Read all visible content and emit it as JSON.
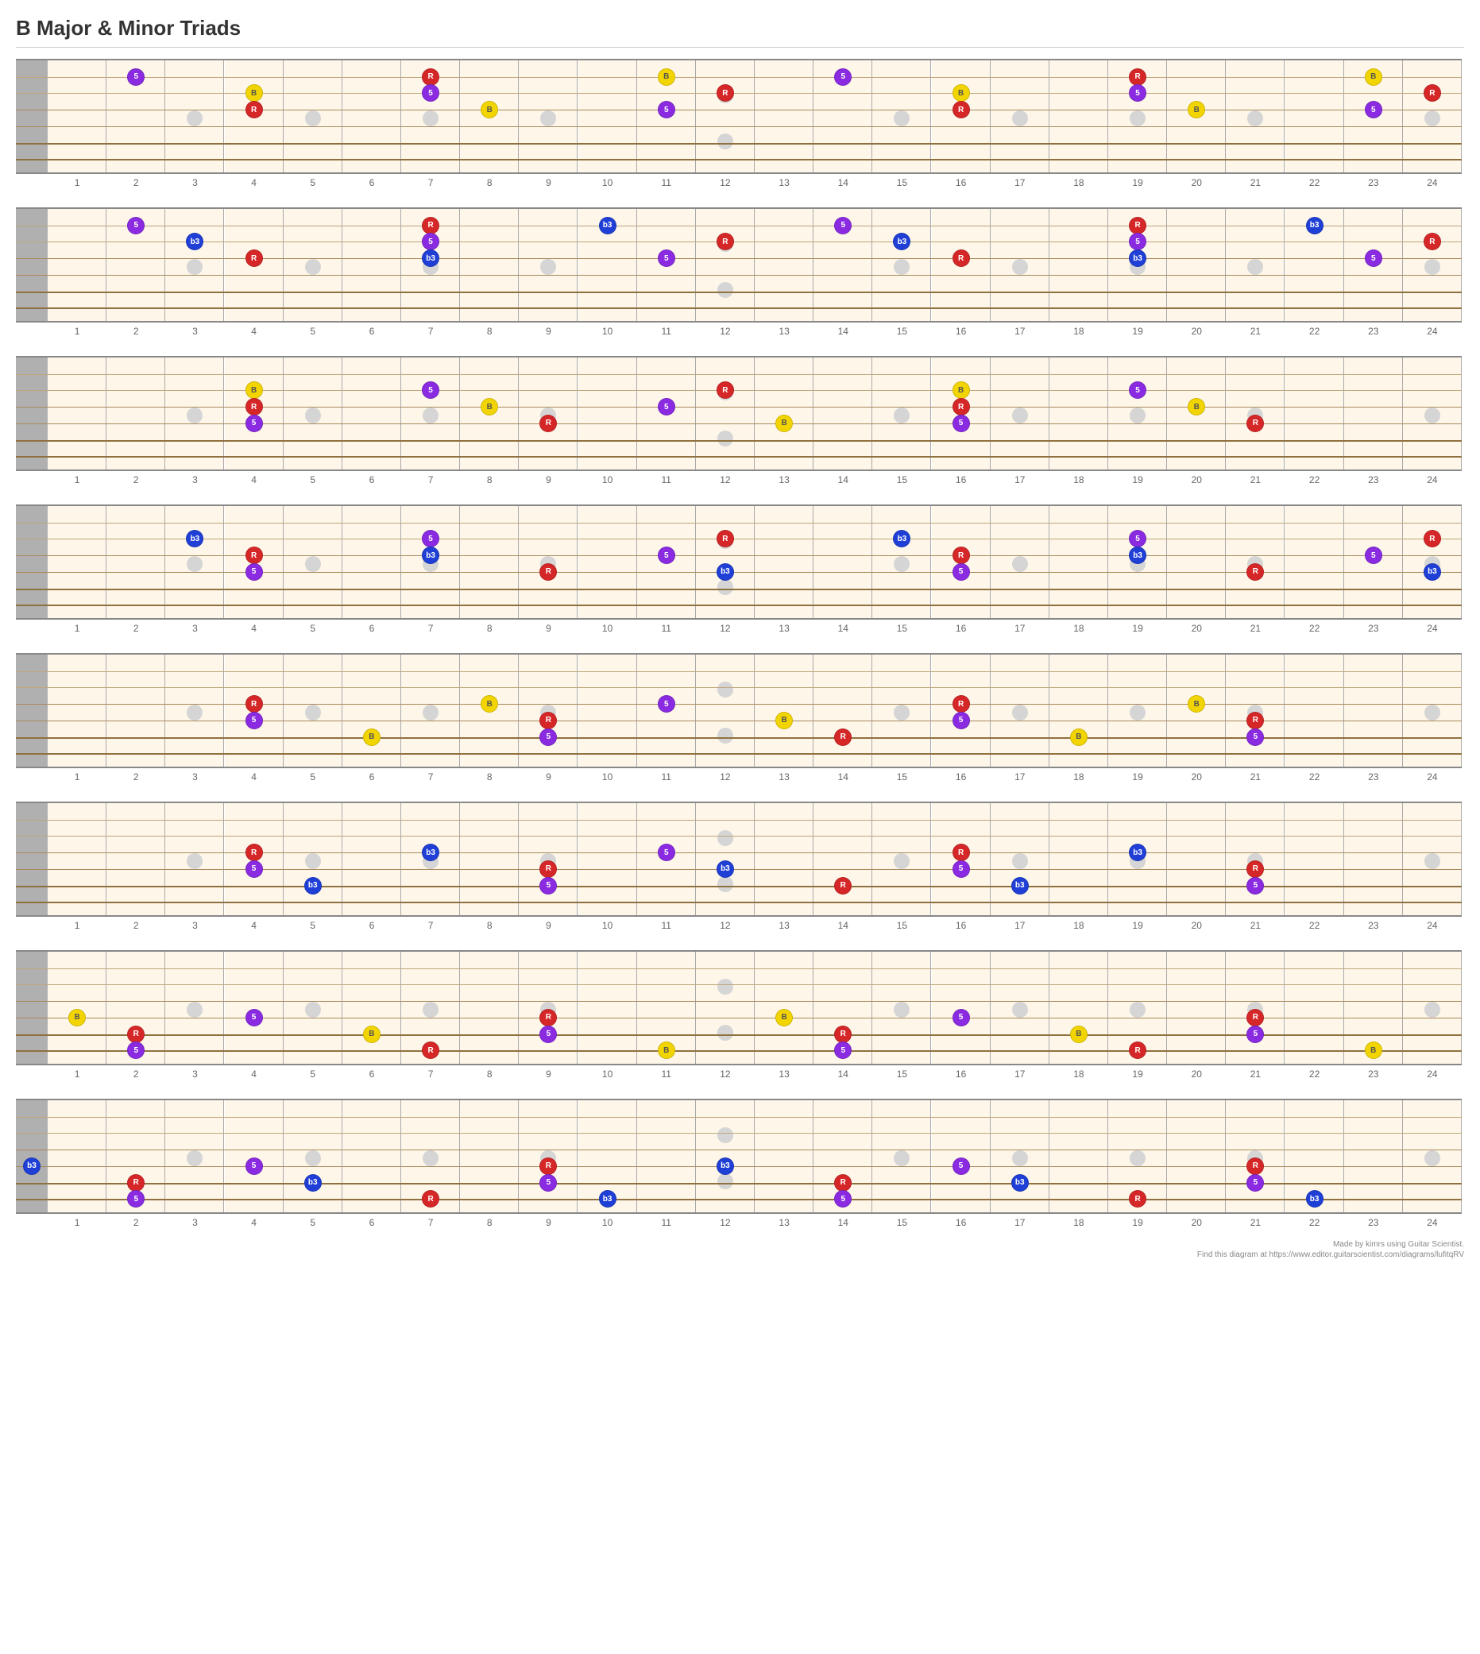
{
  "title": "B Major & Minor Triads",
  "footer_line1": "Made by kimrs using Guitar Scientist.",
  "footer_line2": "Find this diagram at https://www.editor.guitarscientist.com/diagrams/lufitqRV",
  "canvas": {
    "total_width": 1820,
    "nut_width": 40,
    "diagram_height": 145,
    "strings": 6,
    "frets": 24,
    "fretNumbers": [
      "1",
      "2",
      "3",
      "4",
      "5",
      "6",
      "7",
      "8",
      "9",
      "10",
      "11",
      "12",
      "13",
      "14",
      "15",
      "16",
      "17",
      "18",
      "19",
      "20",
      "21",
      "22",
      "23",
      "24"
    ],
    "inlayFrets_single": [
      3,
      5,
      7,
      9,
      15,
      17,
      19,
      21,
      24
    ],
    "inlayFrets_double": [
      12
    ],
    "background": "#fdf6e9",
    "fretLine": "#aaaaaa",
    "nutColor": "#b0b0b0",
    "markerColor": "#d5d5d5",
    "fretNumColor": "#666666",
    "stringColors": [
      "#bfa77c",
      "#bfa77c",
      "#a98a5c",
      "#a98a5c",
      "#8f713f",
      "#8f713f"
    ]
  },
  "noteStyles": {
    "R": {
      "bg": "#d62728",
      "fg": "#ffffff",
      "label": "R"
    },
    "B": {
      "bg": "#f2d500",
      "fg": "#555555",
      "label": "B"
    },
    "5": {
      "bg": "#8a2be2",
      "fg": "#ffffff",
      "label": "5"
    },
    "b3": {
      "bg": "#1f3fd6",
      "fg": "#ffffff",
      "label": "b3"
    }
  },
  "diagrams": [
    {
      "notes": [
        {
          "s": 1,
          "f": 2,
          "n": "5"
        },
        {
          "s": 1,
          "f": 7,
          "n": "R"
        },
        {
          "s": 1,
          "f": 11,
          "n": "B"
        },
        {
          "s": 1,
          "f": 14,
          "n": "5"
        },
        {
          "s": 1,
          "f": 19,
          "n": "R"
        },
        {
          "s": 1,
          "f": 23,
          "n": "B"
        },
        {
          "s": 2,
          "f": 4,
          "n": "B"
        },
        {
          "s": 2,
          "f": 7,
          "n": "5"
        },
        {
          "s": 2,
          "f": 12,
          "n": "R"
        },
        {
          "s": 2,
          "f": 16,
          "n": "B"
        },
        {
          "s": 2,
          "f": 19,
          "n": "5"
        },
        {
          "s": 2,
          "f": 24,
          "n": "R"
        },
        {
          "s": 3,
          "f": 4,
          "n": "R"
        },
        {
          "s": 3,
          "f": 8,
          "n": "B"
        },
        {
          "s": 3,
          "f": 11,
          "n": "5"
        },
        {
          "s": 3,
          "f": 16,
          "n": "R"
        },
        {
          "s": 3,
          "f": 20,
          "n": "B"
        },
        {
          "s": 3,
          "f": 23,
          "n": "5"
        }
      ]
    },
    {
      "notes": [
        {
          "s": 1,
          "f": 2,
          "n": "5"
        },
        {
          "s": 1,
          "f": 7,
          "n": "R"
        },
        {
          "s": 1,
          "f": 10,
          "n": "b3"
        },
        {
          "s": 1,
          "f": 14,
          "n": "5"
        },
        {
          "s": 1,
          "f": 19,
          "n": "R"
        },
        {
          "s": 1,
          "f": 22,
          "n": "b3"
        },
        {
          "s": 2,
          "f": 3,
          "n": "b3"
        },
        {
          "s": 2,
          "f": 7,
          "n": "5"
        },
        {
          "s": 2,
          "f": 12,
          "n": "R"
        },
        {
          "s": 2,
          "f": 15,
          "n": "b3"
        },
        {
          "s": 2,
          "f": 19,
          "n": "5"
        },
        {
          "s": 2,
          "f": 24,
          "n": "R"
        },
        {
          "s": 3,
          "f": 4,
          "n": "R"
        },
        {
          "s": 3,
          "f": 7,
          "n": "b3"
        },
        {
          "s": 3,
          "f": 11,
          "n": "5"
        },
        {
          "s": 3,
          "f": 16,
          "n": "R"
        },
        {
          "s": 3,
          "f": 19,
          "n": "b3"
        },
        {
          "s": 3,
          "f": 23,
          "n": "5"
        }
      ]
    },
    {
      "notes": [
        {
          "s": 2,
          "f": 4,
          "n": "B"
        },
        {
          "s": 2,
          "f": 7,
          "n": "5"
        },
        {
          "s": 2,
          "f": 12,
          "n": "R"
        },
        {
          "s": 2,
          "f": 16,
          "n": "B"
        },
        {
          "s": 2,
          "f": 19,
          "n": "5"
        },
        {
          "s": 3,
          "f": 4,
          "n": "R"
        },
        {
          "s": 3,
          "f": 8,
          "n": "B"
        },
        {
          "s": 3,
          "f": 11,
          "n": "5"
        },
        {
          "s": 3,
          "f": 16,
          "n": "R"
        },
        {
          "s": 3,
          "f": 20,
          "n": "B"
        },
        {
          "s": 4,
          "f": 4,
          "n": "5"
        },
        {
          "s": 4,
          "f": 9,
          "n": "R"
        },
        {
          "s": 4,
          "f": 13,
          "n": "B"
        },
        {
          "s": 4,
          "f": 16,
          "n": "5"
        },
        {
          "s": 4,
          "f": 21,
          "n": "R"
        }
      ]
    },
    {
      "notes": [
        {
          "s": 2,
          "f": 3,
          "n": "b3"
        },
        {
          "s": 2,
          "f": 7,
          "n": "5"
        },
        {
          "s": 2,
          "f": 12,
          "n": "R"
        },
        {
          "s": 2,
          "f": 15,
          "n": "b3"
        },
        {
          "s": 2,
          "f": 19,
          "n": "5"
        },
        {
          "s": 2,
          "f": 24,
          "n": "R"
        },
        {
          "s": 3,
          "f": 4,
          "n": "R"
        },
        {
          "s": 3,
          "f": 7,
          "n": "b3"
        },
        {
          "s": 3,
          "f": 11,
          "n": "5"
        },
        {
          "s": 3,
          "f": 16,
          "n": "R"
        },
        {
          "s": 3,
          "f": 19,
          "n": "b3"
        },
        {
          "s": 3,
          "f": 23,
          "n": "5"
        },
        {
          "s": 4,
          "f": 4,
          "n": "5"
        },
        {
          "s": 4,
          "f": 9,
          "n": "R"
        },
        {
          "s": 4,
          "f": 12,
          "n": "b3"
        },
        {
          "s": 4,
          "f": 16,
          "n": "5"
        },
        {
          "s": 4,
          "f": 21,
          "n": "R"
        },
        {
          "s": 4,
          "f": 24,
          "n": "b3"
        }
      ]
    },
    {
      "notes": [
        {
          "s": 3,
          "f": 4,
          "n": "R"
        },
        {
          "s": 3,
          "f": 8,
          "n": "B"
        },
        {
          "s": 3,
          "f": 11,
          "n": "5"
        },
        {
          "s": 3,
          "f": 16,
          "n": "R"
        },
        {
          "s": 3,
          "f": 20,
          "n": "B"
        },
        {
          "s": 4,
          "f": 4,
          "n": "5"
        },
        {
          "s": 4,
          "f": 9,
          "n": "R"
        },
        {
          "s": 4,
          "f": 13,
          "n": "B"
        },
        {
          "s": 4,
          "f": 16,
          "n": "5"
        },
        {
          "s": 4,
          "f": 21,
          "n": "R"
        },
        {
          "s": 5,
          "f": 6,
          "n": "B"
        },
        {
          "s": 5,
          "f": 9,
          "n": "5"
        },
        {
          "s": 5,
          "f": 14,
          "n": "R"
        },
        {
          "s": 5,
          "f": 18,
          "n": "B"
        },
        {
          "s": 5,
          "f": 21,
          "n": "5"
        }
      ]
    },
    {
      "notes": [
        {
          "s": 3,
          "f": 4,
          "n": "R"
        },
        {
          "s": 3,
          "f": 7,
          "n": "b3"
        },
        {
          "s": 3,
          "f": 11,
          "n": "5"
        },
        {
          "s": 3,
          "f": 16,
          "n": "R"
        },
        {
          "s": 3,
          "f": 19,
          "n": "b3"
        },
        {
          "s": 4,
          "f": 4,
          "n": "5"
        },
        {
          "s": 4,
          "f": 9,
          "n": "R"
        },
        {
          "s": 4,
          "f": 12,
          "n": "b3"
        },
        {
          "s": 4,
          "f": 16,
          "n": "5"
        },
        {
          "s": 4,
          "f": 21,
          "n": "R"
        },
        {
          "s": 5,
          "f": 5,
          "n": "b3"
        },
        {
          "s": 5,
          "f": 9,
          "n": "5"
        },
        {
          "s": 5,
          "f": 14,
          "n": "R"
        },
        {
          "s": 5,
          "f": 17,
          "n": "b3"
        },
        {
          "s": 5,
          "f": 21,
          "n": "5"
        }
      ]
    },
    {
      "notes": [
        {
          "s": 4,
          "f": 1,
          "n": "B"
        },
        {
          "s": 4,
          "f": 4,
          "n": "5"
        },
        {
          "s": 4,
          "f": 9,
          "n": "R"
        },
        {
          "s": 4,
          "f": 13,
          "n": "B"
        },
        {
          "s": 4,
          "f": 16,
          "n": "5"
        },
        {
          "s": 4,
          "f": 21,
          "n": "R"
        },
        {
          "s": 5,
          "f": 2,
          "n": "R"
        },
        {
          "s": 5,
          "f": 6,
          "n": "B"
        },
        {
          "s": 5,
          "f": 9,
          "n": "5"
        },
        {
          "s": 5,
          "f": 14,
          "n": "R"
        },
        {
          "s": 5,
          "f": 18,
          "n": "B"
        },
        {
          "s": 5,
          "f": 21,
          "n": "5"
        },
        {
          "s": 6,
          "f": 2,
          "n": "5"
        },
        {
          "s": 6,
          "f": 7,
          "n": "R"
        },
        {
          "s": 6,
          "f": 11,
          "n": "B"
        },
        {
          "s": 6,
          "f": 14,
          "n": "5"
        },
        {
          "s": 6,
          "f": 19,
          "n": "R"
        },
        {
          "s": 6,
          "f": 23,
          "n": "B"
        }
      ]
    },
    {
      "notes": [
        {
          "s": 4,
          "f": 0,
          "n": "b3"
        },
        {
          "s": 4,
          "f": 4,
          "n": "5"
        },
        {
          "s": 4,
          "f": 9,
          "n": "R"
        },
        {
          "s": 4,
          "f": 12,
          "n": "b3"
        },
        {
          "s": 4,
          "f": 16,
          "n": "5"
        },
        {
          "s": 4,
          "f": 21,
          "n": "R"
        },
        {
          "s": 5,
          "f": 2,
          "n": "R"
        },
        {
          "s": 5,
          "f": 5,
          "n": "b3"
        },
        {
          "s": 5,
          "f": 9,
          "n": "5"
        },
        {
          "s": 5,
          "f": 14,
          "n": "R"
        },
        {
          "s": 5,
          "f": 17,
          "n": "b3"
        },
        {
          "s": 5,
          "f": 21,
          "n": "5"
        },
        {
          "s": 6,
          "f": 2,
          "n": "5"
        },
        {
          "s": 6,
          "f": 7,
          "n": "R"
        },
        {
          "s": 6,
          "f": 10,
          "n": "b3"
        },
        {
          "s": 6,
          "f": 14,
          "n": "5"
        },
        {
          "s": 6,
          "f": 19,
          "n": "R"
        },
        {
          "s": 6,
          "f": 22,
          "n": "b3"
        }
      ]
    }
  ]
}
